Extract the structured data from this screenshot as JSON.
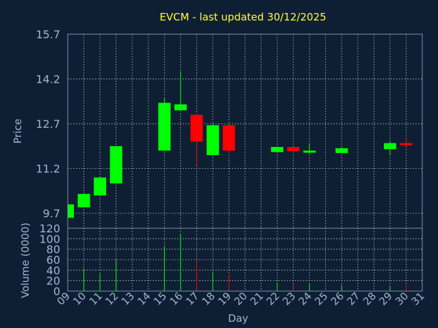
{
  "chart_data": {
    "title": "EVCM - last updated 30/12/2025",
    "type": "candlestick",
    "price_panel": {
      "ylabel": "Price",
      "yticks": [
        9.7,
        11.2,
        12.7,
        14.2,
        15.7
      ],
      "ylim": [
        9.2,
        15.7
      ],
      "grid": true
    },
    "volume_panel": {
      "ylabel": "Volume (0000)",
      "yticks": [
        0,
        20,
        40,
        60,
        80,
        100,
        120
      ],
      "ylim": [
        0,
        120
      ],
      "grid": true
    },
    "xlabel": "Day",
    "xticks": [
      "09",
      "10",
      "11",
      "12",
      "13",
      "14",
      "15",
      "16",
      "17",
      "18",
      "19",
      "20",
      "21",
      "22",
      "23",
      "24",
      "25",
      "26",
      "27",
      "28",
      "29",
      "30",
      "31"
    ],
    "candles": [
      {
        "day": 9,
        "open": 9.55,
        "high": 10.0,
        "low": 9.55,
        "close": 10.0,
        "volume": 0
      },
      {
        "day": 10,
        "open": 9.9,
        "high": 10.35,
        "low": 9.9,
        "close": 10.35,
        "volume": 43
      },
      {
        "day": 11,
        "open": 10.3,
        "high": 10.9,
        "low": 10.3,
        "close": 10.9,
        "volume": 33
      },
      {
        "day": 12,
        "open": 10.7,
        "high": 11.95,
        "low": 10.7,
        "close": 11.95,
        "volume": 60
      },
      {
        "day": 15,
        "open": 11.8,
        "high": 13.55,
        "low": 11.8,
        "close": 13.4,
        "volume": 85
      },
      {
        "day": 16,
        "open": 13.15,
        "high": 14.45,
        "low": 13.15,
        "close": 13.35,
        "volume": 110
      },
      {
        "day": 17,
        "open": 13.0,
        "high": 13.05,
        "low": 11.3,
        "close": 12.1,
        "volume": 57
      },
      {
        "day": 18,
        "open": 11.65,
        "high": 12.7,
        "low": 11.65,
        "close": 12.65,
        "volume": 37
      },
      {
        "day": 19,
        "open": 12.65,
        "high": 12.65,
        "low": 11.75,
        "close": 11.8,
        "volume": 32
      },
      {
        "day": 22,
        "open": 11.75,
        "high": 11.95,
        "low": 11.75,
        "close": 11.92,
        "volume": 16
      },
      {
        "day": 23,
        "open": 11.92,
        "high": 11.92,
        "low": 11.75,
        "close": 11.78,
        "volume": 13
      },
      {
        "day": 24,
        "open": 11.75,
        "high": 12.05,
        "low": 11.7,
        "close": 11.8,
        "volume": 15
      },
      {
        "day": 26,
        "open": 11.72,
        "high": 11.9,
        "low": 11.72,
        "close": 11.88,
        "volume": 12
      },
      {
        "day": 29,
        "open": 11.85,
        "high": 12.1,
        "low": 11.65,
        "close": 12.05,
        "volume": 10
      },
      {
        "day": 30,
        "open": 12.05,
        "high": 12.2,
        "low": 11.95,
        "close": 11.98,
        "volume": 11
      }
    ],
    "colors": {
      "up": "#00ff00",
      "down": "#ff0000",
      "title": "#ffff33",
      "axis_text": "#9fb7cf",
      "background": "#0f1f33",
      "grid": "#c8d2dc"
    }
  }
}
